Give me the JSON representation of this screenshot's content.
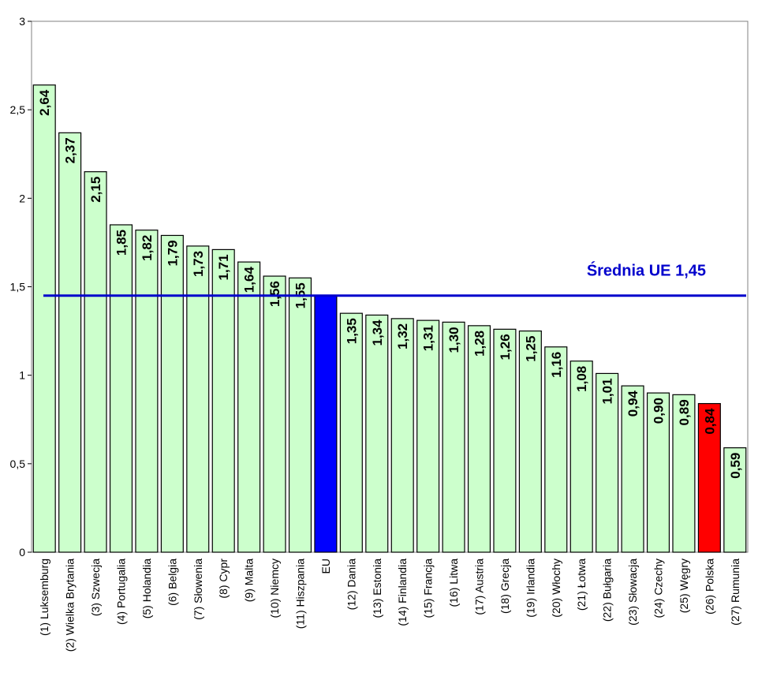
{
  "chart_data": {
    "type": "bar",
    "categories": [
      "(1) Luksemburg",
      "(2) Wielka Brytania",
      "(3) Szwecja",
      "(4) Portugalia",
      "(5) Holandia",
      "(6) Belgia",
      "(7) Słowenia",
      "(8) Cypr",
      "(9) Malta",
      "(10) Niemcy",
      "(11) Hiszpania",
      "EU",
      "(12) Dania",
      "(13) Estonia",
      "(14) Finlandia",
      "(15) Francja",
      "(16) Litwa",
      "(17) Austria",
      "(18) Grecja",
      "(19) Irlandia",
      "(20) Włochy",
      "(21) Łotwa",
      "(22) Bułgaria",
      "(23) Słowacja",
      "(24) Czechy",
      "(25) Węgry",
      "(26) Polska",
      "(27) Rumunia"
    ],
    "values": [
      2.64,
      2.37,
      2.15,
      1.85,
      1.82,
      1.79,
      1.73,
      1.71,
      1.64,
      1.56,
      1.55,
      1.45,
      1.35,
      1.34,
      1.32,
      1.31,
      1.3,
      1.28,
      1.26,
      1.25,
      1.16,
      1.08,
      1.01,
      0.94,
      0.9,
      0.89,
      0.84,
      0.59
    ],
    "data_labels": [
      "2,64",
      "2,37",
      "2,15",
      "1,85",
      "1,82",
      "1,79",
      "1,73",
      "1,71",
      "1,64",
      "1,56",
      "1,55",
      "",
      "1,35",
      "1,34",
      "1,32",
      "1,31",
      "1,30",
      "1,28",
      "1,26",
      "1,25",
      "1,16",
      "1,08",
      "1,01",
      "0,94",
      "0,90",
      "0,89",
      "0,84",
      "0,59"
    ],
    "ylim": [
      0,
      3
    ],
    "yticks": [
      0,
      0.5,
      1,
      1.5,
      2,
      2.5,
      3
    ],
    "ytick_labels": [
      "0",
      "0,5",
      "1",
      "1,5",
      "2",
      "2,5",
      "3"
    ],
    "grid": false,
    "average": {
      "value": 1.45,
      "label": "Średnia UE  1,45"
    },
    "colors": {
      "default_bar": "#ccffcc",
      "eu_bar": "#0000ff",
      "highlight_bar": "#ff0000",
      "average_line": "#0000cc",
      "average_text": "#0000cc"
    },
    "bar_colors": {
      "EU": "#0000ff",
      "(26) Polska": "#ff0000"
    }
  }
}
